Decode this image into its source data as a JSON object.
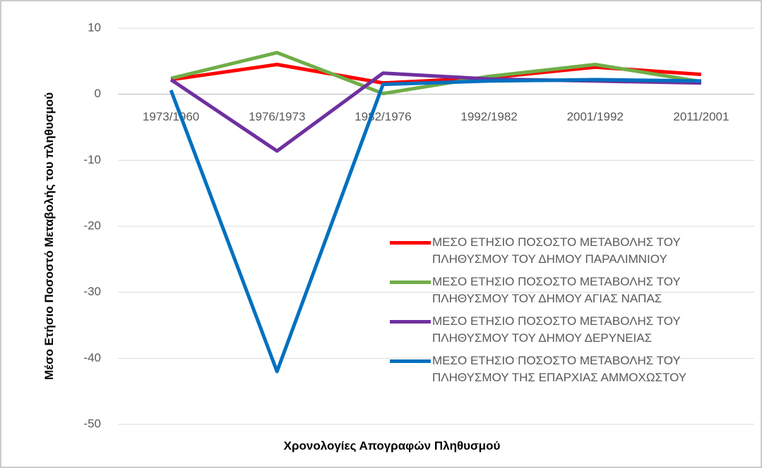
{
  "chart_data": {
    "type": "line",
    "x_label": "Χρονολογίες Απογραφών Πληθυσμού",
    "y_label": "Μέσο Ετήσιο Ποσοστό Μεταβολής του πληθυσμού",
    "categories": [
      "1973/1960",
      "1976/1973",
      "1982/1976",
      "1992/1982",
      "2001/1992",
      "2011/2001"
    ],
    "series": [
      {
        "name": "ΜΕΣΟ ΕΤΗΣΙΟ ΠΟΣΟΣΤΟ ΜΕΤΑΒΟΛΗΣ ΤΟΥ ΠΛΗΘΥΣΜΟΥ ΤΟΥ ΔΗΜΟΥ ΠΑΡΑΛΙΜΝΙΟΥ",
        "color": "#ff0000",
        "values": [
          2.2,
          4.5,
          1.7,
          2.5,
          4.1,
          3.0
        ]
      },
      {
        "name": "ΜΕΣΟ ΕΤΗΣΙΟ ΠΟΣΟΣΤΟ ΜΕΤΑΒΟΛΗΣ ΤΟΥ ΠΛΗΘΥΣΜΟΥ ΤΟΥ ΔΗΜΟΥ ΑΓΙΑΣ ΝΑΠΑΣ",
        "color": "#70ad47",
        "values": [
          2.4,
          6.3,
          0.1,
          2.7,
          4.5,
          1.9
        ]
      },
      {
        "name": "ΜΕΣΟ ΕΤΗΣΙΟ ΠΟΣΟΣΤΟ ΜΕΤΑΒΟΛΗΣ ΤΟΥ ΠΛΗΘΥΣΜΟΥ ΤΟΥ ΔΗΜΟΥ ΔΕΡΥΝΕΙΑΣ",
        "color": "#7030a0",
        "values": [
          2.2,
          -8.6,
          3.2,
          2.3,
          2.0,
          1.7
        ]
      },
      {
        "name": "ΜΕΣΟ ΕΤΗΣΙΟ ΠΟΣΟΣΤΟ ΜΕΤΑΒΟΛΗΣ ΤΟΥ ΠΛΗΘΥΣΜΟΥ ΤΗΣ ΕΠΑΡΧΙΑΣ ΑΜΜΟΧΩΣΤΟΥ",
        "color": "#0070c0",
        "values": [
          0.6,
          -42.0,
          1.5,
          2.0,
          2.2,
          2.0
        ]
      }
    ],
    "ylim": [
      -50,
      10
    ],
    "yticks": [
      -50,
      -40,
      -30,
      -20,
      -10,
      0,
      10
    ],
    "grid": true
  }
}
